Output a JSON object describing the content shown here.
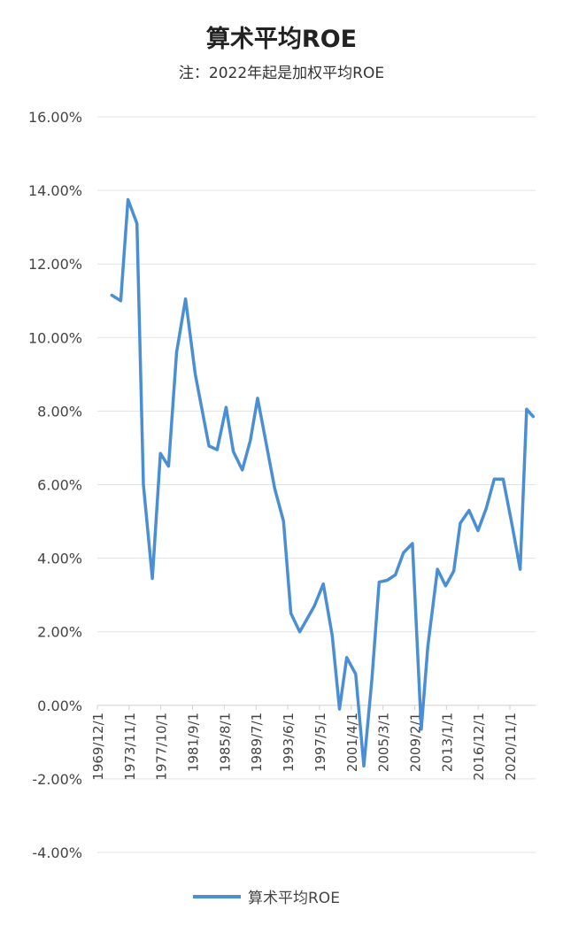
{
  "chart_data": {
    "type": "line",
    "title": "算术平均ROE",
    "subtitle": "注：2022年起是加权平均ROE",
    "xlabel": "",
    "ylabel": "",
    "ylim": [
      -4,
      16
    ],
    "xlim": [
      1969.92,
      2024.0
    ],
    "yticks": [
      {
        "value": 16,
        "label": "16.00%"
      },
      {
        "value": 14,
        "label": "14.00%"
      },
      {
        "value": 12,
        "label": "12.00%"
      },
      {
        "value": 10,
        "label": "10.00%"
      },
      {
        "value": 8,
        "label": "8.00%"
      },
      {
        "value": 6,
        "label": "6.00%"
      },
      {
        "value": 4,
        "label": "4.00%"
      },
      {
        "value": 2,
        "label": "2.00%"
      },
      {
        "value": 0,
        "label": "0.00%"
      },
      {
        "value": -2,
        "label": "-2.00%"
      },
      {
        "value": -4,
        "label": "-4.00%"
      }
    ],
    "xticks": [
      {
        "value": 1969.92,
        "label": "1969/12/1"
      },
      {
        "value": 1973.83,
        "label": "1973/11/1"
      },
      {
        "value": 1977.75,
        "label": "1977/10/1"
      },
      {
        "value": 1981.67,
        "label": "1981/9/1"
      },
      {
        "value": 1985.58,
        "label": "1985/8/1"
      },
      {
        "value": 1989.5,
        "label": "1989/7/1"
      },
      {
        "value": 1993.42,
        "label": "1993/6/1"
      },
      {
        "value": 1997.33,
        "label": "1997/5/1"
      },
      {
        "value": 2001.25,
        "label": "2001/4/1"
      },
      {
        "value": 2005.17,
        "label": "2005/3/1"
      },
      {
        "value": 2009.08,
        "label": "2009/2/1"
      },
      {
        "value": 2013.0,
        "label": "2013/1/1"
      },
      {
        "value": 2016.92,
        "label": "2016/12/1"
      },
      {
        "value": 2020.83,
        "label": "2020/11/1"
      }
    ],
    "grid": true,
    "legend_position": "bottom",
    "series": [
      {
        "name": "算术平均ROE",
        "color": "#4a8fd4",
        "x": [
          1971.7,
          1972.8,
          1973.7,
          1974.8,
          1975.6,
          1976.7,
          1977.7,
          1978.7,
          1979.7,
          1980.8,
          1982.0,
          1983.7,
          1984.7,
          1985.8,
          1986.7,
          1987.8,
          1988.8,
          1989.7,
          1990.6,
          1991.8,
          1992.9,
          1993.8,
          1994.9,
          1996.7,
          1997.8,
          1998.9,
          1999.8,
          2000.7,
          2001.8,
          2002.8,
          2003.8,
          2004.7,
          2005.7,
          2006.7,
          2007.7,
          2008.8,
          2009.9,
          2010.7,
          2011.9,
          2012.9,
          2013.9,
          2014.7,
          2015.8,
          2016.9,
          2017.9,
          2018.9,
          2020.0,
          2021.1,
          2022.1,
          2022.9,
          2023.7
        ],
        "values": [
          11.15,
          11.0,
          13.75,
          13.1,
          6.0,
          3.45,
          6.85,
          6.5,
          9.6,
          11.05,
          9.0,
          7.05,
          6.95,
          8.1,
          6.9,
          6.4,
          7.2,
          8.35,
          7.3,
          5.9,
          5.0,
          2.5,
          2.0,
          2.7,
          3.3,
          1.9,
          -0.1,
          1.3,
          0.85,
          -1.65,
          0.7,
          3.35,
          3.4,
          3.55,
          4.15,
          4.4,
          -0.65,
          1.6,
          3.7,
          3.25,
          3.65,
          4.95,
          5.3,
          4.75,
          5.35,
          6.15,
          6.15,
          4.9,
          3.7,
          8.05,
          7.85
        ]
      }
    ]
  }
}
